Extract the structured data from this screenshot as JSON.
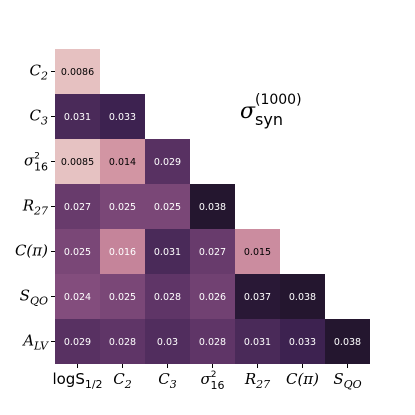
{
  "chart_data": {
    "type": "heatmap",
    "title_symbol": "σ",
    "title_subscript": "syn",
    "title_superscript": "(1000)",
    "row_labels": [
      {
        "base": "C",
        "sub": "2",
        "sup": ""
      },
      {
        "base": "C",
        "sub": "3",
        "sup": ""
      },
      {
        "base": "σ",
        "sub": "16",
        "sup": "2"
      },
      {
        "base": "R",
        "sub": "27",
        "sup": ""
      },
      {
        "base": "C(π)",
        "sub": "",
        "sup": ""
      },
      {
        "base": "S",
        "sub": "QO",
        "sup": ""
      },
      {
        "base": "A",
        "sub": "LV",
        "sup": ""
      }
    ],
    "col_labels": [
      {
        "base": "logS",
        "sub": "1/2",
        "sup": "",
        "plain": true
      },
      {
        "base": "C",
        "sub": "2",
        "sup": ""
      },
      {
        "base": "C",
        "sub": "3",
        "sup": ""
      },
      {
        "base": "σ",
        "sub": "16",
        "sup": "2"
      },
      {
        "base": "R",
        "sub": "27",
        "sup": ""
      },
      {
        "base": "C(π)",
        "sub": "",
        "sup": ""
      },
      {
        "base": "S",
        "sub": "QO",
        "sup": ""
      }
    ],
    "values": [
      [
        "0.0086"
      ],
      [
        "0.031",
        "0.033"
      ],
      [
        "0.0085",
        "0.014",
        "0.029"
      ],
      [
        "0.027",
        "0.025",
        "0.025",
        "0.038"
      ],
      [
        "0.025",
        "0.016",
        "0.031",
        "0.027",
        "0.015"
      ],
      [
        "0.024",
        "0.025",
        "0.028",
        "0.026",
        "0.037",
        "0.038"
      ],
      [
        "0.029",
        "0.028",
        "0.03",
        "0.028",
        "0.031",
        "0.033",
        "0.038"
      ]
    ],
    "value_range": [
      0.0085,
      0.038
    ],
    "colormap": [
      "#e6c2c2",
      "#d69aa6",
      "#b5708f",
      "#8a5181",
      "#5e3466",
      "#3c2250",
      "#24162f"
    ],
    "text_colors": {
      "light_cell": "#000000",
      "dark_cell": "#ffffff"
    }
  }
}
